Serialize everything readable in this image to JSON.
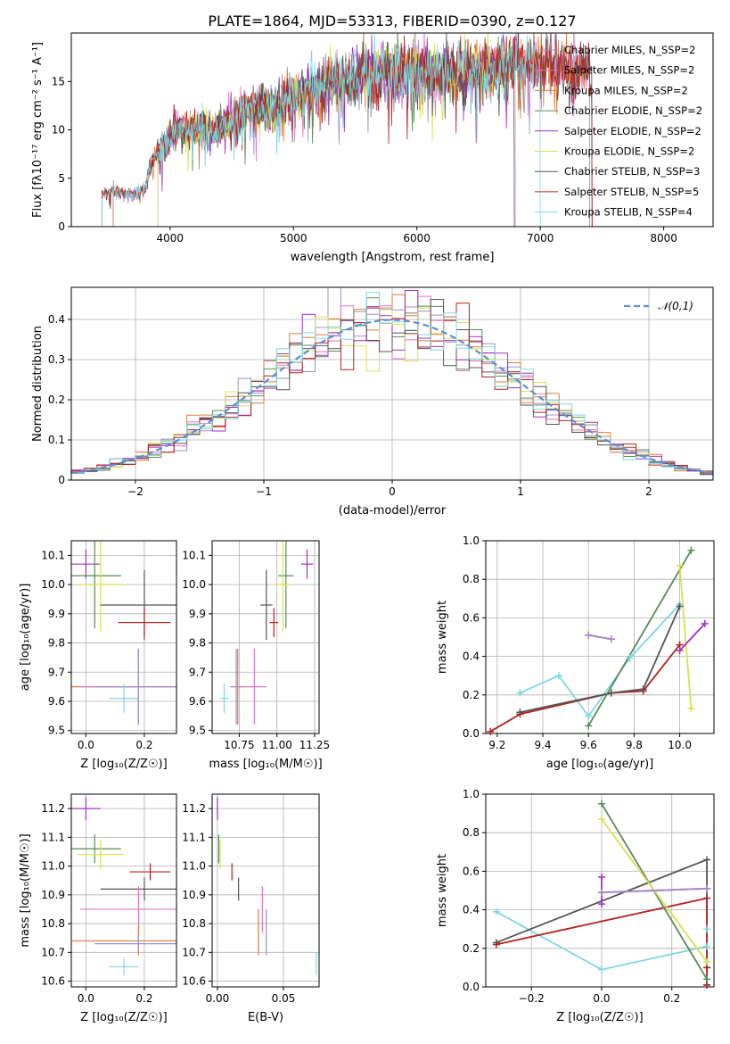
{
  "figure_title": "PLATE=1864, MJD=53313, FIBERID=0390, z=0.127",
  "colors": {
    "chabrier_miles": "#9c8fcf",
    "salpeter_miles": "#e377c2",
    "kroupa_miles": "#e07b39",
    "chabrier_elodie": "#5a8a5a",
    "salpeter_elodie": "#a030c0",
    "kroupa_elodie": "#d8e050",
    "chabrier_stelib": "#555555",
    "salpeter_stelib": "#b22222",
    "kroupa_stelib": "#7fd8e0",
    "normal": "#5b8fd6"
  },
  "chart_data": [
    {
      "id": "spectrum",
      "type": "line",
      "xlabel": "wavelength [Angstrom, rest frame]",
      "ylabel": "Flux [fλ10⁻¹⁷ erg cm⁻² s⁻¹ A⁻¹]",
      "xlim": [
        3200,
        8400
      ],
      "ylim": [
        0,
        20
      ],
      "xticks": [
        4000,
        5000,
        6000,
        7000,
        8000
      ],
      "yticks": [
        0,
        5,
        10,
        15
      ],
      "grid": false,
      "legend_position": "top-right",
      "legend": [
        {
          "label": "Chabrier MILES, N_SSP=2",
          "color_key": "chabrier_miles"
        },
        {
          "label": "Salpeter MILES, N_SSP=2",
          "color_key": "salpeter_miles"
        },
        {
          "label": "Kroupa MILES, N_SSP=2",
          "color_key": "kroupa_miles"
        },
        {
          "label": "Chabrier ELODIE, N_SSP=2",
          "color_key": "chabrier_elodie"
        },
        {
          "label": "Salpeter ELODIE, N_SSP=2",
          "color_key": "salpeter_elodie"
        },
        {
          "label": "Kroupa ELODIE, N_SSP=2",
          "color_key": "kroupa_elodie"
        },
        {
          "label": "Chabrier STELIB, N_SSP=3",
          "color_key": "chabrier_stelib"
        },
        {
          "label": "Salpeter STELIB, N_SSP=5",
          "color_key": "salpeter_stelib"
        },
        {
          "label": "Kroupa STELIB, N_SSP=4",
          "color_key": "kroupa_stelib"
        }
      ],
      "continuum": [
        [
          3450,
          3.4
        ],
        [
          3550,
          3.6
        ],
        [
          3700,
          3.3
        ],
        [
          3800,
          4.0
        ],
        [
          3850,
          6.5
        ],
        [
          3950,
          8.5
        ],
        [
          4050,
          10.0
        ],
        [
          4150,
          9.8
        ],
        [
          4250,
          10.2
        ],
        [
          4350,
          9.8
        ],
        [
          4450,
          10.6
        ],
        [
          4600,
          11.8
        ],
        [
          4750,
          12.5
        ],
        [
          4850,
          12.0
        ],
        [
          4950,
          13.3
        ],
        [
          5100,
          14.0
        ],
        [
          5250,
          14.8
        ],
        [
          5400,
          15.0
        ],
        [
          5550,
          15.6
        ],
        [
          5700,
          15.9
        ],
        [
          5850,
          15.8
        ],
        [
          6000,
          16.2
        ],
        [
          6200,
          15.8
        ],
        [
          6400,
          16.1
        ],
        [
          6600,
          16.4
        ],
        [
          6800,
          16.6
        ],
        [
          7000,
          16.8
        ],
        [
          7150,
          16.6
        ],
        [
          7300,
          16.2
        ],
        [
          7420,
          16.0
        ]
      ],
      "series_ranges": [
        {
          "name": "Chabrier MILES, N_SSP=2",
          "color_key": "chabrier_miles",
          "x_range": [
            3540,
            7400
          ]
        },
        {
          "name": "Salpeter MILES, N_SSP=2",
          "color_key": "salpeter_miles",
          "x_range": [
            3540,
            7400
          ]
        },
        {
          "name": "Kroupa MILES, N_SSP=2",
          "color_key": "kroupa_miles",
          "x_range": [
            3540,
            7420
          ]
        },
        {
          "name": "Chabrier ELODIE, N_SSP=2",
          "color_key": "chabrier_elodie",
          "x_range": [
            3900,
            6790
          ]
        },
        {
          "name": "Salpeter ELODIE, N_SSP=2",
          "color_key": "salpeter_elodie",
          "x_range": [
            3900,
            6790
          ]
        },
        {
          "name": "Kroupa ELODIE, N_SSP=2",
          "color_key": "kroupa_elodie",
          "x_range": [
            3900,
            6800
          ]
        },
        {
          "name": "Chabrier STELIB, N_SSP=3",
          "color_key": "chabrier_stelib",
          "x_range": [
            3450,
            7420
          ]
        },
        {
          "name": "Salpeter STELIB, N_SSP=5",
          "color_key": "salpeter_stelib",
          "x_range": [
            3450,
            7420
          ]
        },
        {
          "name": "Kroupa STELIB, N_SSP=4",
          "color_key": "kroupa_stelib",
          "x_range": [
            3450,
            7000
          ]
        }
      ]
    },
    {
      "id": "residuals",
      "type": "bar",
      "xlabel": "(data-model)/error",
      "ylabel": "Normed distribution",
      "xlim": [
        -2.5,
        2.5
      ],
      "ylim": [
        0,
        0.48
      ],
      "xticks": [
        -2,
        -1,
        0,
        1,
        2
      ],
      "yticks": [
        0.0,
        0.1,
        0.2,
        0.3,
        0.4
      ],
      "grid": true,
      "legend_position": "top-right",
      "legend": [
        {
          "label": "𝒩(0,1)",
          "color_key": "normal",
          "style": "dashed"
        }
      ],
      "bin_width": 0.1,
      "x_range": [
        -2.5,
        2.5
      ],
      "series_color_keys": [
        "chabrier_miles",
        "salpeter_miles",
        "kroupa_miles",
        "chabrier_elodie",
        "salpeter_elodie",
        "kroupa_elodie",
        "chabrier_stelib",
        "salpeter_stelib",
        "kroupa_stelib"
      ],
      "gaussian": {
        "mean": 0,
        "sigma": 1
      }
    },
    {
      "id": "age-vs-z",
      "type": "scatter",
      "xlabel": "Z [log₁₀(Z/Z☉)]",
      "ylabel": "age  [log₁₀(age/yr)]",
      "xlim": [
        -0.05,
        0.31
      ],
      "ylim": [
        9.49,
        10.15
      ],
      "xticks": [
        0.0,
        0.2
      ],
      "yticks": [
        9.5,
        9.6,
        9.7,
        9.8,
        9.9,
        10.0,
        10.1
      ],
      "grid": true,
      "points": [
        {
          "color_key": "salpeter_elodie",
          "x": 0.0,
          "y": 10.07,
          "xerr": 0.05,
          "yerr": 0.05
        },
        {
          "color_key": "chabrier_elodie",
          "x": 0.03,
          "y": 10.03,
          "xerr": 0.09,
          "yerr": 0.18
        },
        {
          "color_key": "kroupa_elodie",
          "x": 0.05,
          "y": 10.0,
          "xerr": 0.08,
          "yerr": 0.16
        },
        {
          "color_key": "chabrier_stelib",
          "x": 0.2,
          "y": 9.93,
          "xerr": 0.15,
          "yerr": 0.12
        },
        {
          "color_key": "salpeter_stelib",
          "x": 0.2,
          "y": 9.87,
          "xerr": 0.09,
          "yerr": 0.05
        },
        {
          "color_key": "kroupa_miles",
          "x": 0.18,
          "y": 9.65,
          "xerr": 0.33,
          "yerr": 0.13
        },
        {
          "color_key": "salpeter_miles",
          "x": 0.18,
          "y": 9.65,
          "xerr": 0.2,
          "yerr": 0.13
        },
        {
          "color_key": "chabrier_miles",
          "x": 0.18,
          "y": 9.65,
          "xerr": 0.15,
          "yerr": 0.13
        },
        {
          "color_key": "kroupa_stelib",
          "x": 0.13,
          "y": 9.61,
          "xerr": 0.05,
          "yerr": 0.05
        }
      ]
    },
    {
      "id": "age-vs-mass",
      "type": "scatter",
      "xlabel": "mass [log₁₀(M/M☉)]",
      "ylabel": "",
      "xlim": [
        10.57,
        11.28
      ],
      "ylim": [
        9.49,
        10.15
      ],
      "xticks": [
        10.75,
        11.0,
        11.25
      ],
      "yticks": [
        9.5,
        9.6,
        9.7,
        9.8,
        9.9,
        10.0,
        10.1
      ],
      "grid": true,
      "points": [
        {
          "color_key": "salpeter_elodie",
          "x": 11.2,
          "y": 10.07,
          "xerr": 0.04,
          "yerr": 0.05
        },
        {
          "color_key": "chabrier_elodie",
          "x": 11.06,
          "y": 10.03,
          "xerr": 0.05,
          "yerr": 0.18
        },
        {
          "color_key": "kroupa_elodie",
          "x": 11.04,
          "y": 10.0,
          "xerr": 0.05,
          "yerr": 0.16
        },
        {
          "color_key": "chabrier_stelib",
          "x": 10.93,
          "y": 9.93,
          "xerr": 0.04,
          "yerr": 0.12
        },
        {
          "color_key": "salpeter_stelib",
          "x": 10.98,
          "y": 9.87,
          "xerr": 0.03,
          "yerr": 0.05
        },
        {
          "color_key": "kroupa_miles",
          "x": 10.74,
          "y": 9.65,
          "xerr": 0.05,
          "yerr": 0.13
        },
        {
          "color_key": "salpeter_miles",
          "x": 10.85,
          "y": 9.65,
          "xerr": 0.08,
          "yerr": 0.13
        },
        {
          "color_key": "chabrier_miles",
          "x": 10.73,
          "y": 9.65,
          "xerr": 0.03,
          "yerr": 0.13
        },
        {
          "color_key": "kroupa_stelib",
          "x": 10.65,
          "y": 9.61,
          "xerr": 0.03,
          "yerr": 0.05
        }
      ]
    },
    {
      "id": "weight-vs-age",
      "type": "line",
      "xlabel": "age  [log₁₀(age/yr)]",
      "ylabel": "mass weight",
      "xlim": [
        9.15,
        10.15
      ],
      "ylim": [
        0,
        1
      ],
      "xticks": [
        9.2,
        9.4,
        9.6,
        9.8,
        10.0
      ],
      "yticks": [
        0.0,
        0.2,
        0.4,
        0.6,
        0.8,
        1.0
      ],
      "grid": true,
      "series": [
        {
          "color_key": "kroupa_stelib",
          "points": [
            [
              9.3,
              0.21
            ],
            [
              9.47,
              0.3
            ],
            [
              9.6,
              0.09
            ],
            [
              9.78,
              0.39
            ],
            [
              10.0,
              0.67
            ]
          ]
        },
        {
          "color_key": "salpeter_stelib",
          "points": [
            [
              9.17,
              0.01
            ],
            [
              9.3,
              0.1
            ],
            [
              9.7,
              0.21
            ],
            [
              9.84,
              0.22
            ],
            [
              10.0,
              0.46
            ]
          ]
        },
        {
          "color_key": "chabrier_stelib",
          "points": [
            [
              9.3,
              0.11
            ],
            [
              9.7,
              0.21
            ],
            [
              9.84,
              0.23
            ],
            [
              10.0,
              0.66
            ]
          ]
        },
        {
          "color_key": "chabrier_elodie",
          "points": [
            [
              9.6,
              0.04
            ],
            [
              10.05,
              0.95
            ]
          ]
        },
        {
          "color_key": "kroupa_elodie",
          "points": [
            [
              10.0,
              0.87
            ],
            [
              10.05,
              0.13
            ]
          ]
        },
        {
          "color_key": "salpeter_elodie",
          "points": [
            [
              10.0,
              0.43
            ],
            [
              10.11,
              0.57
            ]
          ]
        },
        {
          "color_key": "kroupa_miles",
          "points": [
            [
              9.6,
              0.51
            ],
            [
              9.7,
              0.49
            ]
          ]
        },
        {
          "color_key": "salpeter_miles",
          "points": [
            [
              9.6,
              0.51
            ],
            [
              9.7,
              0.49
            ]
          ]
        },
        {
          "color_key": "chabrier_miles",
          "points": [
            [
              9.6,
              0.51
            ],
            [
              9.7,
              0.49
            ]
          ]
        }
      ]
    },
    {
      "id": "mass-vs-z",
      "type": "scatter",
      "xlabel": "Z [log₁₀(Z/Z☉)]",
      "ylabel": "mass [log₁₀(M/M☉)]",
      "xlim": [
        -0.05,
        0.31
      ],
      "ylim": [
        10.58,
        11.25
      ],
      "xticks": [
        0.0,
        0.2
      ],
      "yticks": [
        10.6,
        10.7,
        10.8,
        10.9,
        11.0,
        11.1,
        11.2
      ],
      "grid": true,
      "points": [
        {
          "color_key": "salpeter_elodie",
          "x": 0.0,
          "y": 11.2,
          "xerr": 0.05,
          "yerr": 0.04
        },
        {
          "color_key": "chabrier_elodie",
          "x": 0.03,
          "y": 11.06,
          "xerr": 0.09,
          "yerr": 0.05
        },
        {
          "color_key": "kroupa_elodie",
          "x": 0.05,
          "y": 11.04,
          "xerr": 0.08,
          "yerr": 0.05
        },
        {
          "color_key": "chabrier_stelib",
          "x": 0.2,
          "y": 10.92,
          "xerr": 0.15,
          "yerr": 0.04
        },
        {
          "color_key": "salpeter_stelib",
          "x": 0.22,
          "y": 10.98,
          "xerr": 0.07,
          "yerr": 0.03
        },
        {
          "color_key": "salpeter_miles",
          "x": 0.18,
          "y": 10.85,
          "xerr": 0.2,
          "yerr": 0.08
        },
        {
          "color_key": "kroupa_miles",
          "x": 0.18,
          "y": 10.74,
          "xerr": 0.33,
          "yerr": 0.05
        },
        {
          "color_key": "chabrier_miles",
          "x": 0.18,
          "y": 10.73,
          "xerr": 0.15,
          "yerr": 0.03
        },
        {
          "color_key": "kroupa_stelib",
          "x": 0.13,
          "y": 10.65,
          "xerr": 0.05,
          "yerr": 0.03
        }
      ]
    },
    {
      "id": "mass-vs-ebv",
      "type": "scatter",
      "xlabel": "E(B-V)",
      "ylabel": "",
      "xlim": [
        -0.004,
        0.077
      ],
      "ylim": [
        10.58,
        11.25
      ],
      "xticks": [
        0.0,
        0.05
      ],
      "yticks": [
        10.6,
        10.7,
        10.8,
        10.9,
        11.0,
        11.1,
        11.2
      ],
      "grid": true,
      "points": [
        {
          "color_key": "salpeter_elodie",
          "x": 0.0,
          "y": 11.2,
          "xerr": 0,
          "yerr": 0.04
        },
        {
          "color_key": "chabrier_elodie",
          "x": 0.001,
          "y": 11.06,
          "xerr": 0,
          "yerr": 0.05
        },
        {
          "color_key": "kroupa_elodie",
          "x": 0.002,
          "y": 11.04,
          "xerr": 0,
          "yerr": 0.05
        },
        {
          "color_key": "salpeter_stelib",
          "x": 0.011,
          "y": 10.98,
          "xerr": 0,
          "yerr": 0.03
        },
        {
          "color_key": "chabrier_stelib",
          "x": 0.016,
          "y": 10.92,
          "xerr": 0,
          "yerr": 0.04
        },
        {
          "color_key": "salpeter_miles",
          "x": 0.034,
          "y": 10.85,
          "xerr": 0,
          "yerr": 0.08
        },
        {
          "color_key": "kroupa_miles",
          "x": 0.031,
          "y": 10.77,
          "xerr": 0,
          "yerr": 0.08
        },
        {
          "color_key": "chabrier_miles",
          "x": 0.037,
          "y": 10.77,
          "xerr": 0,
          "yerr": 0.08
        },
        {
          "color_key": "kroupa_stelib",
          "x": 0.075,
          "y": 10.66,
          "xerr": 0,
          "yerr": 0.04
        }
      ]
    },
    {
      "id": "weight-vs-z",
      "type": "line",
      "xlabel": "Z [log₁₀(Z/Z☉)]",
      "ylabel": "mass weight",
      "xlim": [
        -0.33,
        0.32
      ],
      "ylim": [
        0,
        1
      ],
      "xticks": [
        -0.2,
        0.0,
        0.2
      ],
      "yticks": [
        0.0,
        0.2,
        0.4,
        0.6,
        0.8,
        1.0
      ],
      "grid": true,
      "series": [
        {
          "color_key": "kroupa_stelib",
          "points": [
            [
              -0.3,
              0.39
            ],
            [
              0.0,
              0.09
            ],
            [
              0.3,
              0.21
            ],
            [
              0.3,
              0.3
            ]
          ]
        },
        {
          "color_key": "chabrier_stelib",
          "points": [
            [
              -0.3,
              0.23
            ],
            [
              0.3,
              0.66
            ],
            [
              0.3,
              0.1
            ],
            [
              0.3,
              0.01
            ]
          ]
        },
        {
          "color_key": "salpeter_stelib",
          "points": [
            [
              -0.3,
              0.22
            ],
            [
              0.3,
              0.46
            ],
            [
              0.3,
              0.1
            ],
            [
              0.3,
              0.01
            ]
          ]
        },
        {
          "color_key": "chabrier_elodie",
          "points": [
            [
              0.0,
              0.95
            ],
            [
              0.3,
              0.04
            ]
          ]
        },
        {
          "color_key": "kroupa_elodie",
          "points": [
            [
              0.0,
              0.87
            ],
            [
              0.3,
              0.13
            ]
          ]
        },
        {
          "color_key": "salpeter_elodie",
          "points": [
            [
              0.0,
              0.57
            ],
            [
              0.0,
              0.43
            ]
          ]
        },
        {
          "color_key": "kroupa_miles",
          "points": [
            [
              0.0,
              0.49
            ],
            [
              0.3,
              0.51
            ]
          ]
        },
        {
          "color_key": "salpeter_miles",
          "points": [
            [
              0.0,
              0.49
            ],
            [
              0.3,
              0.51
            ]
          ]
        },
        {
          "color_key": "chabrier_miles",
          "points": [
            [
              0.0,
              0.49
            ],
            [
              0.3,
              0.51
            ]
          ]
        }
      ]
    }
  ]
}
